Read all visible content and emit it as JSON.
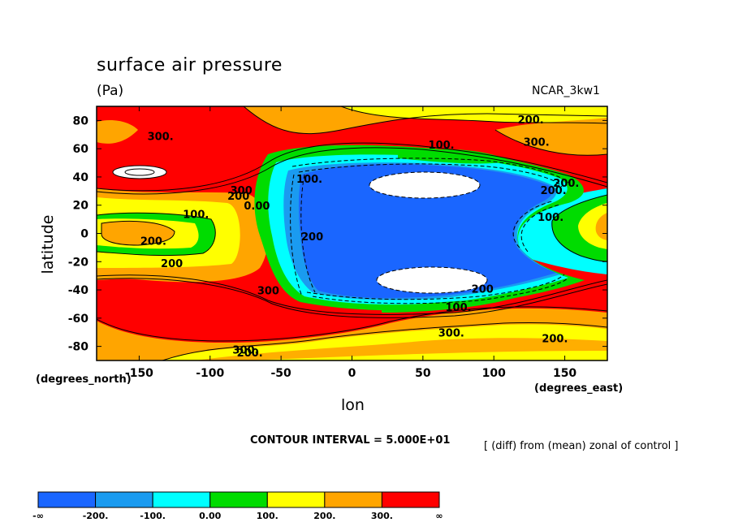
{
  "chart_data": {
    "type": "heatmap",
    "title": "surface air pressure",
    "units": "(Pa)",
    "source": "NCAR_3kw1",
    "xlabel": "lon",
    "ylabel": "latitude",
    "x_units": "(degrees_east)",
    "y_units": "(degrees_north)",
    "xlim": [
      -180,
      180
    ],
    "ylim": [
      -90,
      90
    ],
    "x_ticks": [
      "-150",
      "-100",
      "-50",
      "0",
      "50",
      "100",
      "150"
    ],
    "y_ticks": [
      "80",
      "60",
      "40",
      "20",
      "0",
      "-20",
      "-40",
      "-60",
      "-80"
    ],
    "x_tick_values": [
      -150,
      -100,
      -50,
      0,
      50,
      100,
      150
    ],
    "y_tick_values": [
      80,
      60,
      40,
      20,
      0,
      -20,
      -40,
      -60,
      -80
    ],
    "contour_interval_text": "CONTOUR INTERVAL = 5.000E+01",
    "note": "[ (diff) from (mean) zonal of control ]",
    "colorbar": {
      "labels": [
        "-∞",
        "-200.",
        "-100.",
        "0.00",
        "100.",
        "200.",
        "300.",
        "∞"
      ],
      "colors": [
        "#1a66ff",
        "#1a9bf0",
        "#00ffff",
        "#00dc00",
        "#ffff00",
        "#ffa500",
        "#ff0000"
      ]
    },
    "contour_labels": [
      {
        "text": "300.",
        "lon": -135,
        "lat": 66
      },
      {
        "text": "200.",
        "lon": 126,
        "lat": 78
      },
      {
        "text": "300.",
        "lon": 130,
        "lat": 62
      },
      {
        "text": "100.",
        "lon": 63,
        "lat": 60
      },
      {
        "text": "100.",
        "lon": -30,
        "lat": 36
      },
      {
        "text": "300",
        "lon": -78,
        "lat": 28
      },
      {
        "text": "200",
        "lon": -80,
        "lat": 24
      },
      {
        "text": "0.00",
        "lon": -67,
        "lat": 17
      },
      {
        "text": "100.",
        "lon": -110,
        "lat": 11
      },
      {
        "text": "200.",
        "lon": -140,
        "lat": -8
      },
      {
        "text": "200",
        "lon": -127,
        "lat": -24
      },
      {
        "text": "200",
        "lon": -28,
        "lat": -5
      },
      {
        "text": "200.",
        "lon": 151,
        "lat": 33
      },
      {
        "text": "200.",
        "lon": 142,
        "lat": 28
      },
      {
        "text": "100.",
        "lon": 140,
        "lat": 9
      },
      {
        "text": "200",
        "lon": 92,
        "lat": -42
      },
      {
        "text": "100.",
        "lon": 75,
        "lat": -55
      },
      {
        "text": "300.",
        "lon": 70,
        "lat": -73
      },
      {
        "text": "200.",
        "lon": 143,
        "lat": -77
      },
      {
        "text": "300.",
        "lon": -75,
        "lat": -85
      },
      {
        "text": "200.",
        "lon": -72,
        "lat": -87
      },
      {
        "text": "300",
        "lon": -59,
        "lat": -43
      }
    ]
  }
}
